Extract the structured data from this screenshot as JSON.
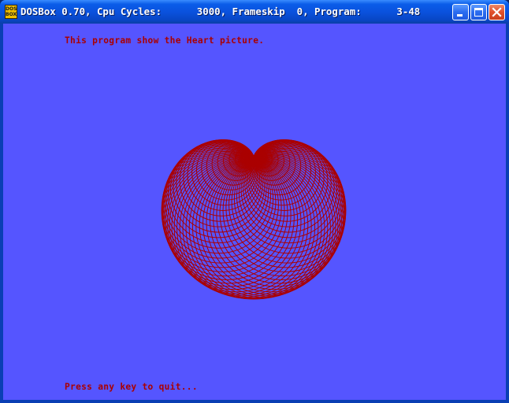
{
  "window": {
    "title": "DOSBox 0.70, Cpu Cycles:      3000, Frameskip  0, Program:      3-48",
    "icon_text_top": "DOS",
    "icon_text_bottom": "BOX",
    "buttons": {
      "minimize": "minimize-icon",
      "maximize": "maximize-icon",
      "close": "close-icon"
    }
  },
  "screen": {
    "header_text": "This program show the Heart picture.",
    "footer_text": "Press any key to quit...",
    "background_color": "#5555ff",
    "draw_color": "#aa0000",
    "figure": "cardioid-heart-circles"
  }
}
